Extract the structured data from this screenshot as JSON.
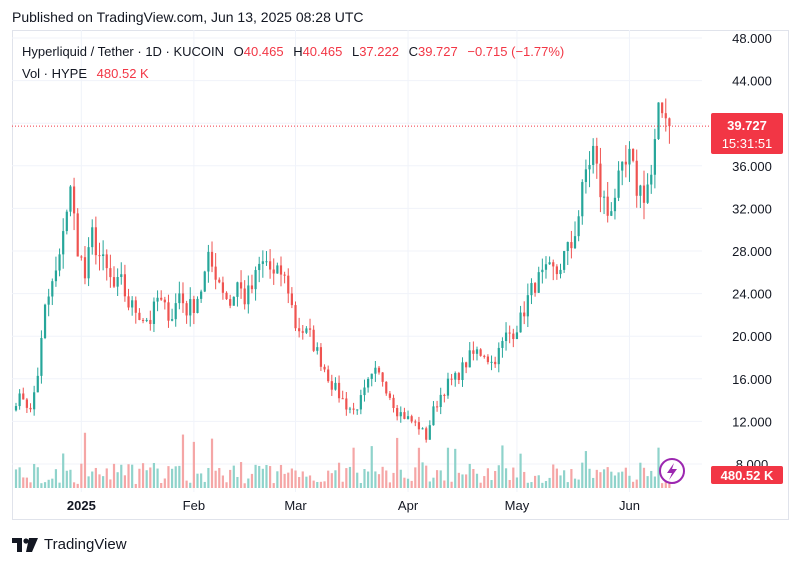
{
  "published": "Published on TradingView.com, Jun 13, 2025 08:28 UTC",
  "legend": {
    "symbol": "Hyperliquid / Tether · 1D · KUCOIN",
    "open_label": "O",
    "open": "40.465",
    "high_label": "H",
    "high": "40.465",
    "low_label": "L",
    "low": "37.222",
    "close_label": "C",
    "close": "39.727",
    "change": "−0.715 (−1.77%)",
    "vol_label": "Vol · HYPE",
    "vol": "480.52 K"
  },
  "badges": {
    "last_price": "39.727",
    "countdown": "15:31:51",
    "volume": "480.52 K"
  },
  "brand": "TradingView",
  "colors": {
    "up": "#26a69a",
    "down": "#ef5350",
    "up_vol": "#8fd3cb",
    "down_vol": "#f5a6a6",
    "badge": "#f23645"
  },
  "chart_data": {
    "type": "candlestick",
    "ylim": [
      8.0,
      48.0
    ],
    "y_ticks": [
      "8.000",
      "12.000",
      "16.000",
      "20.000",
      "24.000",
      "28.000",
      "32.000",
      "36.000",
      "40.000",
      "44.000",
      "48.000"
    ],
    "x_labels": [
      {
        "text": "2025",
        "day": 18
      },
      {
        "text": "Feb",
        "day": 49
      },
      {
        "text": "Mar",
        "day": 77
      },
      {
        "text": "Apr",
        "day": 108
      },
      {
        "text": "May",
        "day": 138
      },
      {
        "text": "Jun",
        "day": 169
      }
    ],
    "first_day": 0,
    "last_price": 39.727,
    "anchors": [
      [
        0,
        14.0
      ],
      [
        2,
        14.3
      ],
      [
        4,
        12.9
      ],
      [
        6,
        16.5
      ],
      [
        8,
        22.5
      ],
      [
        10,
        24.8
      ],
      [
        12,
        27.0
      ],
      [
        13,
        30.5
      ],
      [
        15,
        33.5
      ],
      [
        17,
        28.5
      ],
      [
        19,
        25.5
      ],
      [
        21,
        29.5
      ],
      [
        23,
        27.5
      ],
      [
        25,
        26.0
      ],
      [
        27,
        24.5
      ],
      [
        29,
        25.0
      ],
      [
        31,
        23.0
      ],
      [
        33,
        22.5
      ],
      [
        35,
        21.8
      ],
      [
        37,
        21.5
      ],
      [
        39,
        23.5
      ],
      [
        41,
        22.5
      ],
      [
        43,
        22.0
      ],
      [
        45,
        24.0
      ],
      [
        47,
        22.5
      ],
      [
        49,
        23.0
      ],
      [
        51,
        24.5
      ],
      [
        53,
        27.0
      ],
      [
        55,
        26.0
      ],
      [
        57,
        24.5
      ],
      [
        59,
        23.0
      ],
      [
        61,
        25.0
      ],
      [
        63,
        23.5
      ],
      [
        65,
        24.5
      ],
      [
        67,
        26.5
      ],
      [
        69,
        27.0
      ],
      [
        71,
        25.5
      ],
      [
        73,
        26.0
      ],
      [
        75,
        24.5
      ],
      [
        77,
        21.0
      ],
      [
        79,
        20.5
      ],
      [
        81,
        20.0
      ],
      [
        83,
        18.5
      ],
      [
        85,
        17.0
      ],
      [
        87,
        15.5
      ],
      [
        89,
        14.5
      ],
      [
        91,
        13.5
      ],
      [
        93,
        13.0
      ],
      [
        95,
        14.0
      ],
      [
        97,
        15.5
      ],
      [
        99,
        16.5
      ],
      [
        101,
        16.0
      ],
      [
        103,
        14.5
      ],
      [
        105,
        13.0
      ],
      [
        107,
        12.5
      ],
      [
        109,
        12.0
      ],
      [
        111,
        11.5
      ],
      [
        113,
        10.5
      ],
      [
        115,
        13.0
      ],
      [
        117,
        14.5
      ],
      [
        119,
        15.5
      ],
      [
        121,
        16.0
      ],
      [
        123,
        17.0
      ],
      [
        125,
        18.0
      ],
      [
        127,
        18.5
      ],
      [
        129,
        18.5
      ],
      [
        131,
        17.5
      ],
      [
        133,
        18.5
      ],
      [
        135,
        20.0
      ],
      [
        137,
        20.5
      ],
      [
        139,
        21.5
      ],
      [
        141,
        23.5
      ],
      [
        143,
        25.0
      ],
      [
        145,
        25.5
      ],
      [
        147,
        26.0
      ],
      [
        149,
        26.0
      ],
      [
        151,
        27.5
      ],
      [
        153,
        28.5
      ],
      [
        155,
        31.5
      ],
      [
        157,
        35.5
      ],
      [
        159,
        37.5
      ],
      [
        161,
        33.5
      ],
      [
        163,
        31.5
      ],
      [
        165,
        33.5
      ],
      [
        167,
        35.0
      ],
      [
        169,
        36.5
      ],
      [
        171,
        34.0
      ],
      [
        173,
        33.5
      ],
      [
        175,
        35.0
      ],
      [
        177,
        40.5
      ],
      [
        179,
        41.5
      ],
      [
        180,
        39.727
      ]
    ],
    "volume_range_k": [
      0,
      2000
    ],
    "current_volume_k": 480.52
  }
}
